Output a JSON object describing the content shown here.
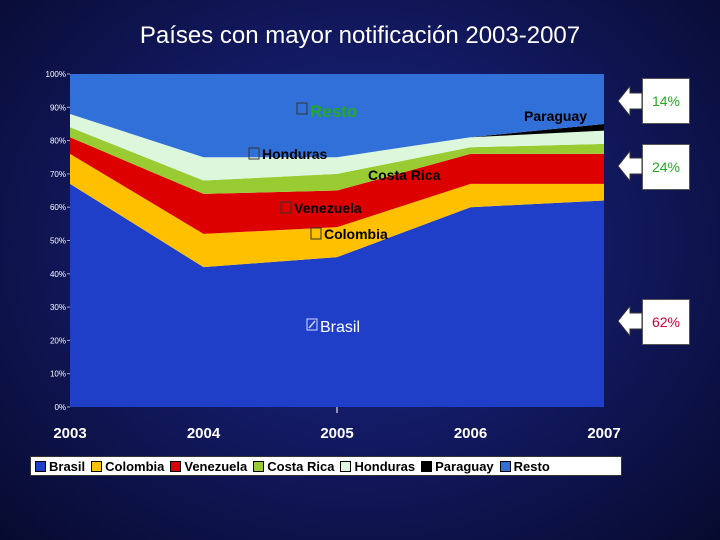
{
  "title": "Países con mayor notificación 2003-2007",
  "chart_data": {
    "type": "area",
    "stacked": true,
    "percent": true,
    "x": [
      "2003",
      "2004",
      "2005",
      "2006",
      "2007"
    ],
    "ylim": [
      0,
      100
    ],
    "yticks": [
      "0%",
      "10%",
      "20%",
      "30%",
      "40%",
      "50%",
      "60%",
      "70%",
      "80%",
      "90%",
      "100%"
    ],
    "series": [
      {
        "name": "Brasil",
        "color": "#1f3fc8",
        "values": [
          67,
          42,
          45,
          60,
          62
        ]
      },
      {
        "name": "Colombia",
        "color": "#ffc000",
        "values": [
          9,
          10,
          9,
          7,
          5
        ]
      },
      {
        "name": "Venezuela",
        "color": "#dd0000",
        "values": [
          5,
          12,
          11,
          9,
          9
        ]
      },
      {
        "name": "Costa Rica",
        "color": "#99cc33",
        "values": [
          3,
          4,
          5,
          2,
          3
        ]
      },
      {
        "name": "Honduras",
        "color": "#dcf7dc",
        "values": [
          4,
          7,
          5,
          3,
          4
        ]
      },
      {
        "name": "Paraguay",
        "color": "#000000",
        "values": [
          0,
          0,
          0,
          0,
          2
        ]
      },
      {
        "name": "Resto",
        "color": "#3070d8",
        "values": [
          12,
          25,
          25,
          19,
          15
        ]
      }
    ],
    "labels": [
      {
        "series": "Resto",
        "text": "Resto"
      },
      {
        "series": "Paraguay",
        "text": "Paraguay"
      },
      {
        "series": "Honduras",
        "text": "Honduras"
      },
      {
        "series": "Costa Rica",
        "text": "Costa Rica"
      },
      {
        "series": "Venezuela",
        "text": "Venezuela"
      },
      {
        "series": "Colombia",
        "text": "Colombia"
      },
      {
        "series": "Brasil",
        "text": "Brasil"
      }
    ],
    "legend_position": "bottom"
  },
  "callouts": [
    {
      "text": "14%",
      "color": "#22aa22"
    },
    {
      "text": "24%",
      "color": "#22aa22"
    },
    {
      "text": "62%",
      "color": "#cc0033"
    }
  ]
}
